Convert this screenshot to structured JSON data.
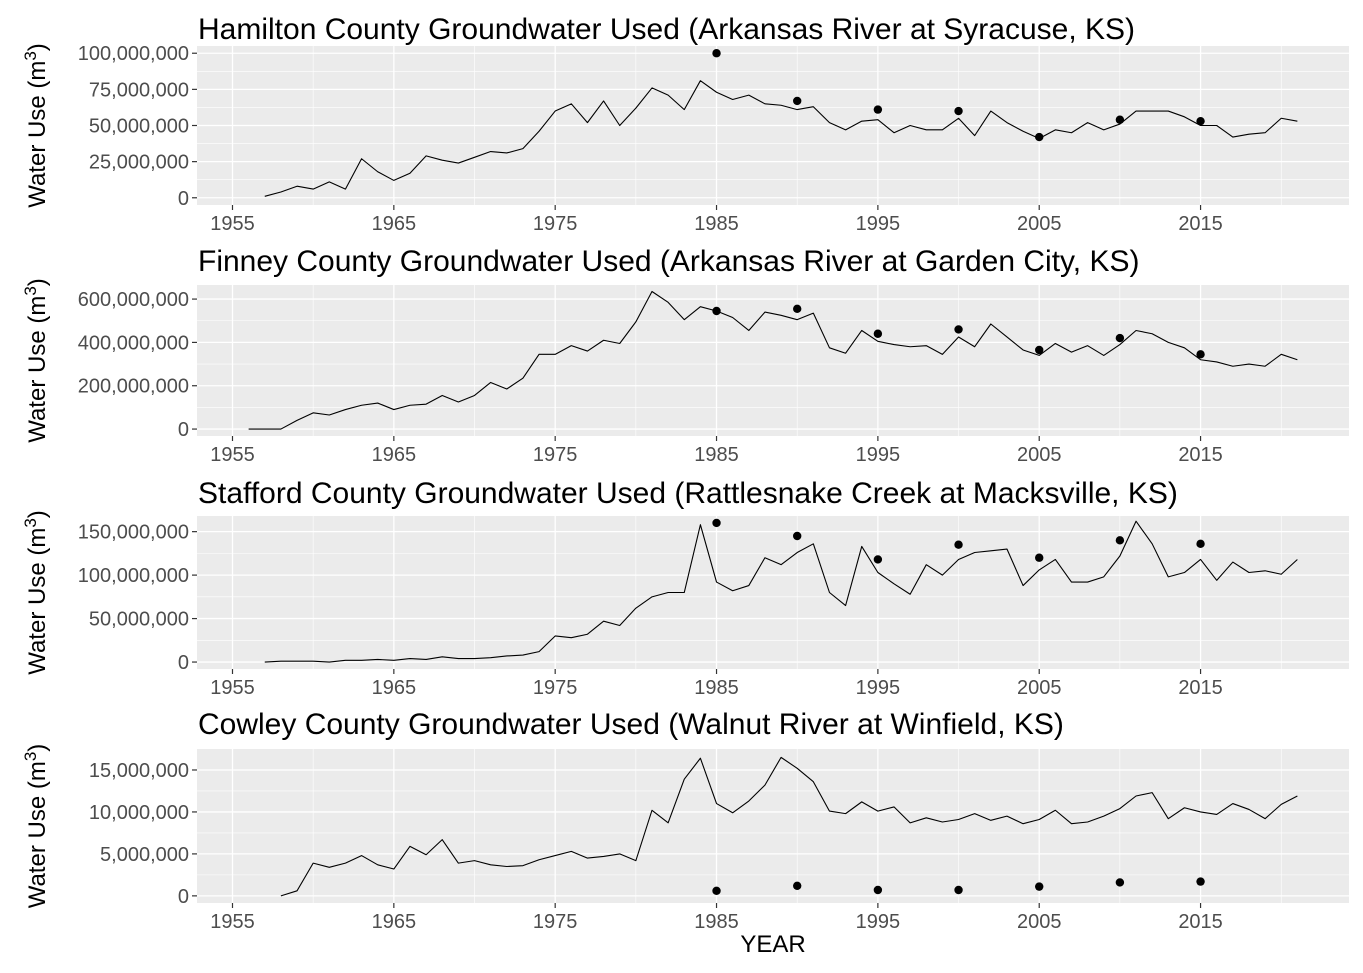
{
  "xlabel": "YEAR",
  "ylabel": "Water Use (m",
  "ylabel_sup": "3",
  "ylabel_close": ")",
  "chart_data": [
    {
      "type": "line",
      "title": "Hamilton County Groundwater Used (Arkansas River at Syracuse, KS)",
      "xlim": [
        1952.8,
        2024.2
      ],
      "ylim": [
        -5000000,
        105000000
      ],
      "xticks": [
        1955,
        1965,
        1975,
        1985,
        1995,
        2005,
        2015
      ],
      "xtick_labels": [
        "1955",
        "1965",
        "1975",
        "1985",
        "1995",
        "2005",
        "2015"
      ],
      "yticks": [
        0,
        25000000,
        50000000,
        75000000,
        100000000
      ],
      "ytick_labels": [
        "0",
        "25,000,000",
        "50,000,000",
        "75,000,000",
        "100,000,000"
      ],
      "series": [
        {
          "kind": "line",
          "x": [
            1957,
            1958,
            1959,
            1960,
            1961,
            1962,
            1963,
            1964,
            1965,
            1966,
            1967,
            1968,
            1969,
            1970,
            1971,
            1972,
            1973,
            1974,
            1975,
            1976,
            1977,
            1978,
            1979,
            1980,
            1981,
            1982,
            1983,
            1984,
            1985,
            1986,
            1987,
            1988,
            1989,
            1990,
            1991,
            1992,
            1993,
            1994,
            1995,
            1996,
            1997,
            1998,
            1999,
            2000,
            2001,
            2002,
            2003,
            2004,
            2005,
            2006,
            2007,
            2008,
            2009,
            2010,
            2011,
            2012,
            2013,
            2014,
            2015,
            2016,
            2017,
            2018,
            2019,
            2020,
            2021
          ],
          "y": [
            1000000,
            4000000,
            8000000,
            6000000,
            11000000,
            6000000,
            27000000,
            18000000,
            12000000,
            17000000,
            29000000,
            26000000,
            24000000,
            28000000,
            32000000,
            31000000,
            34000000,
            46000000,
            60000000,
            65000000,
            52000000,
            67000000,
            50000000,
            62000000,
            76000000,
            71000000,
            61000000,
            81000000,
            73000000,
            68000000,
            71000000,
            65000000,
            64000000,
            61000000,
            63000000,
            52000000,
            47000000,
            53000000,
            54000000,
            45000000,
            50000000,
            47000000,
            47000000,
            55000000,
            43000000,
            60000000,
            52000000,
            46000000,
            41000000,
            47000000,
            45000000,
            52000000,
            47000000,
            51000000,
            60000000,
            60000000,
            60000000,
            56000000,
            50000000,
            50000000,
            42000000,
            44000000,
            45000000,
            55000000,
            53000000
          ]
        },
        {
          "kind": "points",
          "x": [
            1985,
            1990,
            1995,
            2000,
            2005,
            2010,
            2015
          ],
          "y": [
            100000000,
            67000000,
            61000000,
            60000000,
            42000000,
            54000000,
            53000000
          ]
        }
      ]
    },
    {
      "type": "line",
      "title": "Finney County Groundwater Used (Arkansas River at Garden City, KS)",
      "xlim": [
        1952.8,
        2024.2
      ],
      "ylim": [
        -32000000,
        665000000
      ],
      "xticks": [
        1955,
        1965,
        1975,
        1985,
        1995,
        2005,
        2015
      ],
      "xtick_labels": [
        "1955",
        "1965",
        "1975",
        "1985",
        "1995",
        "2005",
        "2015"
      ],
      "yticks": [
        0,
        200000000,
        400000000,
        600000000
      ],
      "ytick_labels": [
        "0",
        "200,000,000",
        "400,000,000",
        "600,000,000"
      ],
      "series": [
        {
          "kind": "line",
          "x": [
            1956,
            1957,
            1958,
            1959,
            1960,
            1961,
            1962,
            1963,
            1964,
            1965,
            1966,
            1967,
            1968,
            1969,
            1970,
            1971,
            1972,
            1973,
            1974,
            1975,
            1976,
            1977,
            1978,
            1979,
            1980,
            1981,
            1982,
            1983,
            1984,
            1985,
            1986,
            1987,
            1988,
            1989,
            1990,
            1991,
            1992,
            1993,
            1994,
            1995,
            1996,
            1997,
            1998,
            1999,
            2000,
            2001,
            2002,
            2003,
            2004,
            2005,
            2006,
            2007,
            2008,
            2009,
            2010,
            2011,
            2012,
            2013,
            2014,
            2015,
            2016,
            2017,
            2018,
            2019,
            2020,
            2021
          ],
          "y": [
            0,
            0,
            0,
            40000000,
            75000000,
            65000000,
            90000000,
            110000000,
            120000000,
            90000000,
            110000000,
            115000000,
            155000000,
            125000000,
            155000000,
            215000000,
            185000000,
            235000000,
            345000000,
            345000000,
            385000000,
            360000000,
            410000000,
            395000000,
            495000000,
            635000000,
            585000000,
            505000000,
            565000000,
            545000000,
            515000000,
            455000000,
            540000000,
            525000000,
            505000000,
            535000000,
            375000000,
            350000000,
            455000000,
            405000000,
            390000000,
            380000000,
            385000000,
            345000000,
            425000000,
            380000000,
            485000000,
            425000000,
            365000000,
            340000000,
            395000000,
            355000000,
            385000000,
            340000000,
            390000000,
            455000000,
            440000000,
            400000000,
            375000000,
            320000000,
            310000000,
            290000000,
            300000000,
            290000000,
            345000000,
            320000000
          ]
        },
        {
          "kind": "points",
          "x": [
            1985,
            1990,
            1995,
            2000,
            2005,
            2010,
            2015
          ],
          "y": [
            545000000,
            555000000,
            440000000,
            460000000,
            365000000,
            420000000,
            345000000
          ]
        }
      ]
    },
    {
      "type": "line",
      "title": "Stafford County Groundwater Used (Rattlesnake Creek at Macksville, KS)",
      "xlim": [
        1952.8,
        2024.2
      ],
      "ylim": [
        -8000000,
        168000000
      ],
      "xticks": [
        1955,
        1965,
        1975,
        1985,
        1995,
        2005,
        2015
      ],
      "xtick_labels": [
        "1955",
        "1965",
        "1975",
        "1985",
        "1995",
        "2005",
        "2015"
      ],
      "yticks": [
        0,
        50000000,
        100000000,
        150000000
      ],
      "ytick_labels": [
        "0",
        "50,000,000",
        "100,000,000",
        "150,000,000"
      ],
      "series": [
        {
          "kind": "line",
          "x": [
            1957,
            1958,
            1959,
            1960,
            1961,
            1962,
            1963,
            1964,
            1965,
            1966,
            1967,
            1968,
            1969,
            1970,
            1971,
            1972,
            1973,
            1974,
            1975,
            1976,
            1977,
            1978,
            1979,
            1980,
            1981,
            1982,
            1983,
            1984,
            1985,
            1986,
            1987,
            1988,
            1989,
            1990,
            1991,
            1992,
            1993,
            1994,
            1995,
            1996,
            1997,
            1998,
            1999,
            2000,
            2001,
            2002,
            2003,
            2004,
            2005,
            2006,
            2007,
            2008,
            2009,
            2010,
            2011,
            2012,
            2013,
            2014,
            2015,
            2016,
            2017,
            2018,
            2019,
            2020,
            2021
          ],
          "y": [
            0,
            1000000,
            1000000,
            1000000,
            0,
            2000000,
            2000000,
            3000000,
            2000000,
            4000000,
            3000000,
            6000000,
            4000000,
            4000000,
            5000000,
            7000000,
            8000000,
            12000000,
            30000000,
            28000000,
            32000000,
            47000000,
            42000000,
            62000000,
            75000000,
            80000000,
            80000000,
            158000000,
            92000000,
            82000000,
            88000000,
            120000000,
            112000000,
            126000000,
            136000000,
            80000000,
            65000000,
            133000000,
            103000000,
            90000000,
            78000000,
            112000000,
            100000000,
            118000000,
            126000000,
            128000000,
            130000000,
            88000000,
            106000000,
            118000000,
            92000000,
            92000000,
            98000000,
            122000000,
            162000000,
            136000000,
            98000000,
            103000000,
            118000000,
            94000000,
            115000000,
            103000000,
            105000000,
            101000000,
            118000000
          ]
        },
        {
          "kind": "points",
          "x": [
            1985,
            1990,
            1995,
            2000,
            2005,
            2010,
            2015
          ],
          "y": [
            160000000,
            145000000,
            118000000,
            135000000,
            120000000,
            140000000,
            136000000
          ]
        }
      ]
    },
    {
      "type": "line",
      "title": "Cowley County Groundwater Used (Walnut River at Winfield, KS)",
      "xlim": [
        1952.8,
        2024.2
      ],
      "ylim": [
        -850000,
        17500000
      ],
      "xticks": [
        1955,
        1965,
        1975,
        1985,
        1995,
        2005,
        2015
      ],
      "xtick_labels": [
        "1955",
        "1965",
        "1975",
        "1985",
        "1995",
        "2005",
        "2015"
      ],
      "yticks": [
        0,
        5000000,
        10000000,
        15000000
      ],
      "ytick_labels": [
        "0",
        "5,000,000",
        "10,000,000",
        "15,000,000"
      ],
      "series": [
        {
          "kind": "line",
          "x": [
            1958,
            1959,
            1960,
            1961,
            1962,
            1963,
            1964,
            1965,
            1966,
            1967,
            1968,
            1969,
            1970,
            1971,
            1972,
            1973,
            1974,
            1975,
            1976,
            1977,
            1978,
            1979,
            1980,
            1981,
            1982,
            1983,
            1984,
            1985,
            1986,
            1987,
            1988,
            1989,
            1990,
            1991,
            1992,
            1993,
            1994,
            1995,
            1996,
            1997,
            1998,
            1999,
            2000,
            2001,
            2002,
            2003,
            2004,
            2005,
            2006,
            2007,
            2008,
            2009,
            2010,
            2011,
            2012,
            2013,
            2014,
            2015,
            2016,
            2017,
            2018,
            2019,
            2020,
            2021
          ],
          "y": [
            0,
            600000,
            3900000,
            3400000,
            3900000,
            4800000,
            3700000,
            3200000,
            5900000,
            4900000,
            6700000,
            3900000,
            4200000,
            3700000,
            3500000,
            3600000,
            4300000,
            4800000,
            5300000,
            4500000,
            4700000,
            5000000,
            4200000,
            10200000,
            8700000,
            13900000,
            16400000,
            11000000,
            9900000,
            11300000,
            13200000,
            16500000,
            15200000,
            13600000,
            10100000,
            9800000,
            11200000,
            10100000,
            10600000,
            8700000,
            9300000,
            8800000,
            9100000,
            9800000,
            9000000,
            9500000,
            8600000,
            9100000,
            10200000,
            8600000,
            8800000,
            9500000,
            10400000,
            11900000,
            12300000,
            9200000,
            10500000,
            10000000,
            9700000,
            11000000,
            10300000,
            9200000,
            10900000,
            11900000
          ]
        },
        {
          "kind": "points",
          "x": [
            1985,
            1990,
            1995,
            2000,
            2005,
            2010,
            2015
          ],
          "y": [
            600000,
            1200000,
            700000,
            700000,
            1100000,
            1600000,
            1700000
          ]
        }
      ]
    }
  ]
}
